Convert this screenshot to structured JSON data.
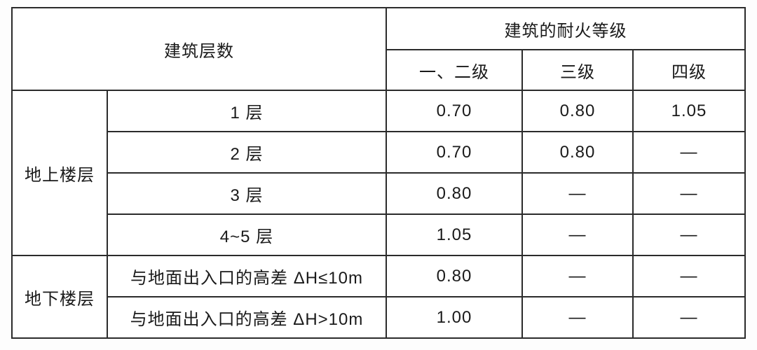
{
  "table": {
    "header": {
      "building_floors": "建筑层数",
      "fire_rating_group": "建筑的耐火等级",
      "grade_columns": [
        "一、二级",
        "三级",
        "四级"
      ]
    },
    "row_groups": [
      {
        "label": "地上楼层",
        "rows": [
          {
            "label": "1 层",
            "values": [
              "0.70",
              "0.80",
              "1.05"
            ]
          },
          {
            "label": "2 层",
            "values": [
              "0.70",
              "0.80",
              "—"
            ]
          },
          {
            "label": "3 层",
            "values": [
              "0.80",
              "—",
              "—"
            ]
          },
          {
            "label": "4~5 层",
            "values": [
              "1.05",
              "—",
              "—"
            ]
          }
        ]
      },
      {
        "label": "地下楼层",
        "rows": [
          {
            "label": "与地面出入口的高差 ΔH≤10m",
            "values": [
              "0.80",
              "—",
              "—"
            ]
          },
          {
            "label": "与地面出入口的高差 ΔH>10m",
            "values": [
              "1.00",
              "—",
              "—"
            ]
          }
        ]
      }
    ]
  },
  "colors": {
    "border": "#2b2b2b",
    "text": "#1a1a1a",
    "background": "#ffffff"
  }
}
